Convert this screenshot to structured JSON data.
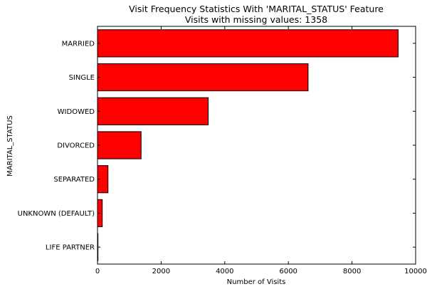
{
  "chart_data": {
    "type": "bar",
    "orientation": "horizontal",
    "title": "Visit Frequency Statistics With 'MARITAL_STATUS' Feature",
    "subtitle": "Visits with missing values: 1358",
    "xlabel": "Number of Visits",
    "ylabel": "MARITAL_STATUS",
    "xlim": [
      0,
      10000
    ],
    "xticks": [
      0,
      2000,
      4000,
      6000,
      8000,
      10000
    ],
    "xtick_labels": [
      "0",
      "2000",
      "4000",
      "6000",
      "8000",
      "10000"
    ],
    "categories": [
      "MARRIED",
      "SINGLE",
      "WIDOWED",
      "DIVORCED",
      "SEPARATED",
      "UNKNOWN (DEFAULT)",
      "LIFE PARTNER"
    ],
    "values": [
      9450,
      6620,
      3480,
      1370,
      330,
      150,
      15
    ],
    "bar_color": "#ff0000",
    "edge_color": "#000000",
    "grid": false,
    "legend": "none"
  }
}
